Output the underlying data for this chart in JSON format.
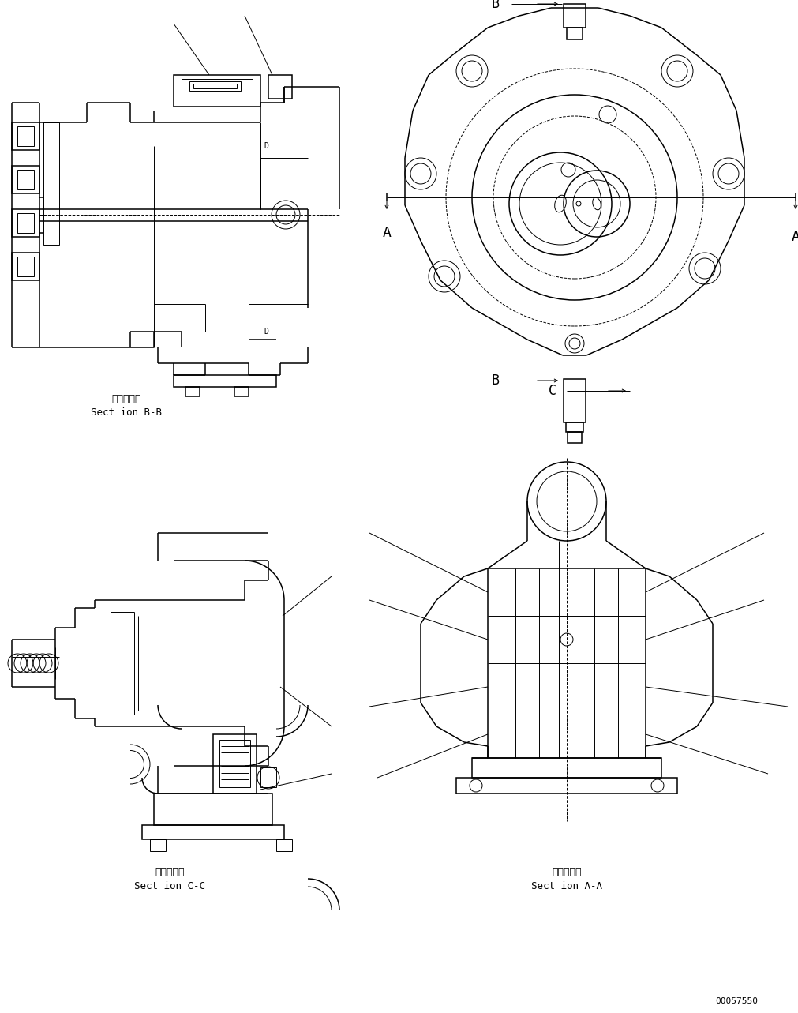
{
  "bg_color": "#ffffff",
  "lc": "#000000",
  "lw": 0.7,
  "lw2": 1.1,
  "fig_width": 10.12,
  "fig_height": 12.83,
  "dpi": 100,
  "texts": {
    "bb_ja": "断面Ｂ－Ｂ",
    "bb_en": "Sect ion B-B",
    "cc_ja": "断面Ｃ－Ｃ",
    "cc_en": "Sect ion C-C",
    "aa_ja": "断面Ａ－Ａ",
    "aa_en": "Sect ion A-A",
    "partno": "00057550"
  }
}
